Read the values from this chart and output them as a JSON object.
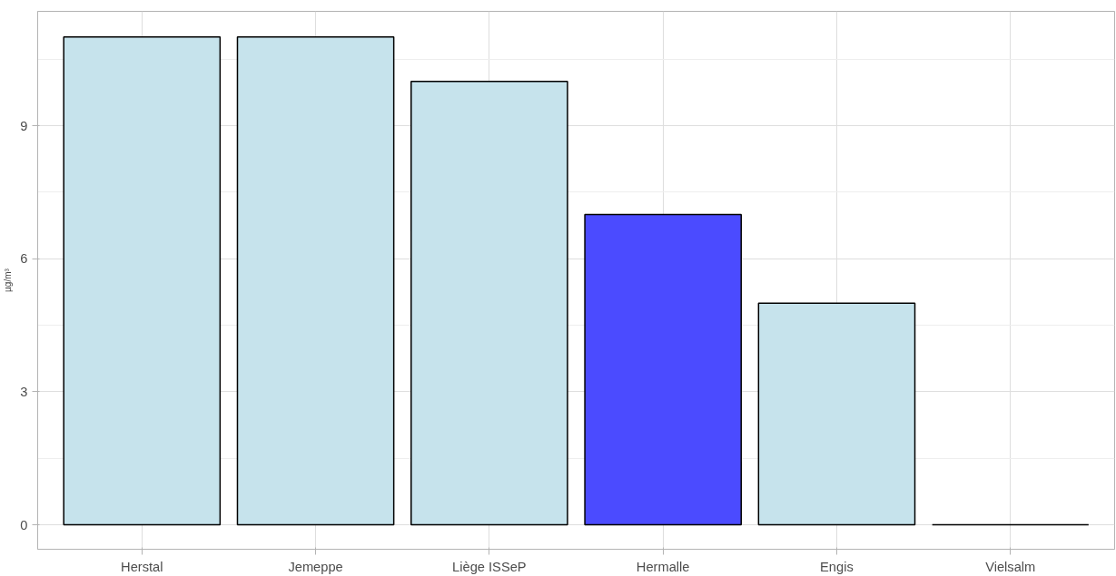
{
  "chart_data": {
    "type": "bar",
    "ylabel": "µg/m³",
    "categories": [
      "Herstal",
      "Jemeppe",
      "Liège ISSeP",
      "Hermalle",
      "Engis",
      "Vielsalm"
    ],
    "values": [
      11,
      11,
      10,
      7,
      5,
      0
    ],
    "colors": [
      "#c6e3ec",
      "#c6e3ec",
      "#c6e3ec",
      "#4b4bff",
      "#c6e3ec",
      "#000000"
    ],
    "ylim": [
      -0.55,
      11.58
    ],
    "yticks": [
      0,
      3,
      6,
      9
    ],
    "grid": true
  }
}
